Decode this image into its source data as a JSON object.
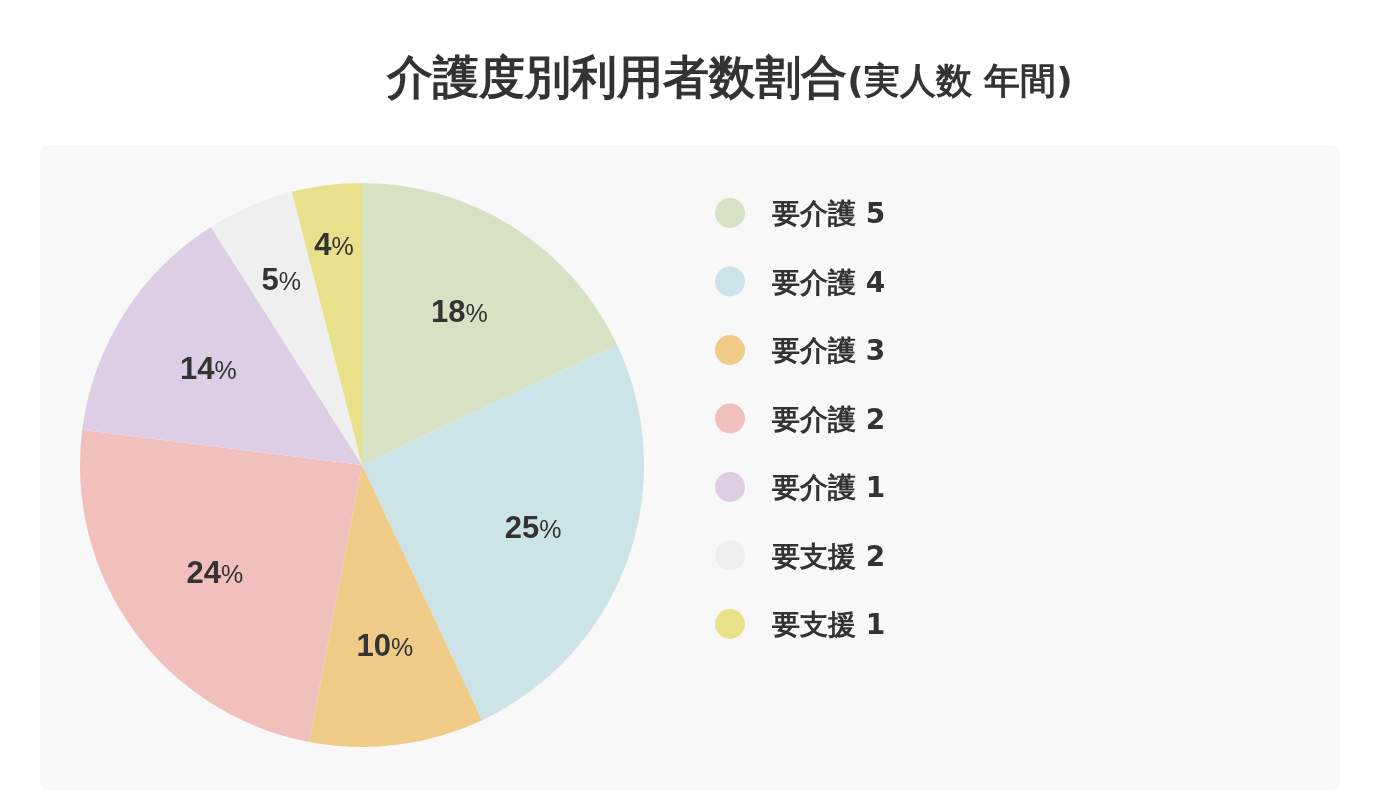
{
  "chart_data": {
    "type": "pie",
    "title": "介護度別利用者数割合",
    "subtitle": "(実人数 年間)",
    "categories": [
      "要介護 5",
      "要介護 4",
      "要介護 3",
      "要介護 2",
      "要介護 1",
      "要支援 2",
      "要支援 1"
    ],
    "values": [
      18,
      25,
      10,
      24,
      14,
      5,
      4
    ],
    "colors": [
      "#d6e2c3",
      "#cce4e7",
      "#efcb87",
      "#f2c0bc",
      "#ddcee6",
      "#efefef",
      "#e8e08a"
    ],
    "value_labels": [
      "18%",
      "25%",
      "10%",
      "24%",
      "14%",
      "5%",
      "4%"
    ],
    "legend": "right"
  }
}
